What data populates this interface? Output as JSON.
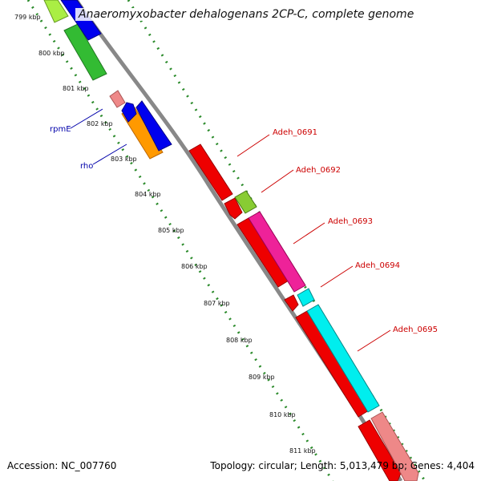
{
  "title": "Anaeromyxobacter dehalogenans 2CP-C, complete genome",
  "footer": {
    "accession": "Accession: NC_007760",
    "summary": "Topology: circular; Length: 5,013,479 bp; Genes: 4,404"
  },
  "ticks": [
    "799 kbp",
    "800 kbp",
    "801 kbp",
    "802 kbp",
    "803 kbp",
    "804 kbp",
    "805 kbp",
    "806 kbp",
    "807 kbp",
    "808 kbp",
    "809 kbp",
    "810 kbp",
    "811 kbp"
  ],
  "gene_labels": [
    {
      "name": "rpmE",
      "color": "blue"
    },
    {
      "name": "rho",
      "color": "blue"
    },
    {
      "name": "Adeh_0691",
      "color": "red"
    },
    {
      "name": "Adeh_0692",
      "color": "red"
    },
    {
      "name": "Adeh_0693",
      "color": "red"
    },
    {
      "name": "Adeh_0694",
      "color": "red"
    },
    {
      "name": "Adeh_0695",
      "color": "red"
    }
  ],
  "colors": {
    "backbone": "#888888",
    "tick_dots": "#2a8a2a",
    "blue_gene": "#0000ee",
    "green_gene": "#33bb33",
    "lime_gene": "#aaee44",
    "orange_gene": "#ff9900",
    "pink_gene": "#ee8888",
    "red_gene": "#ee0000",
    "magenta_gene": "#ee2299",
    "cyan_gene": "#00eeee",
    "light_green_gene": "#88cc33"
  }
}
